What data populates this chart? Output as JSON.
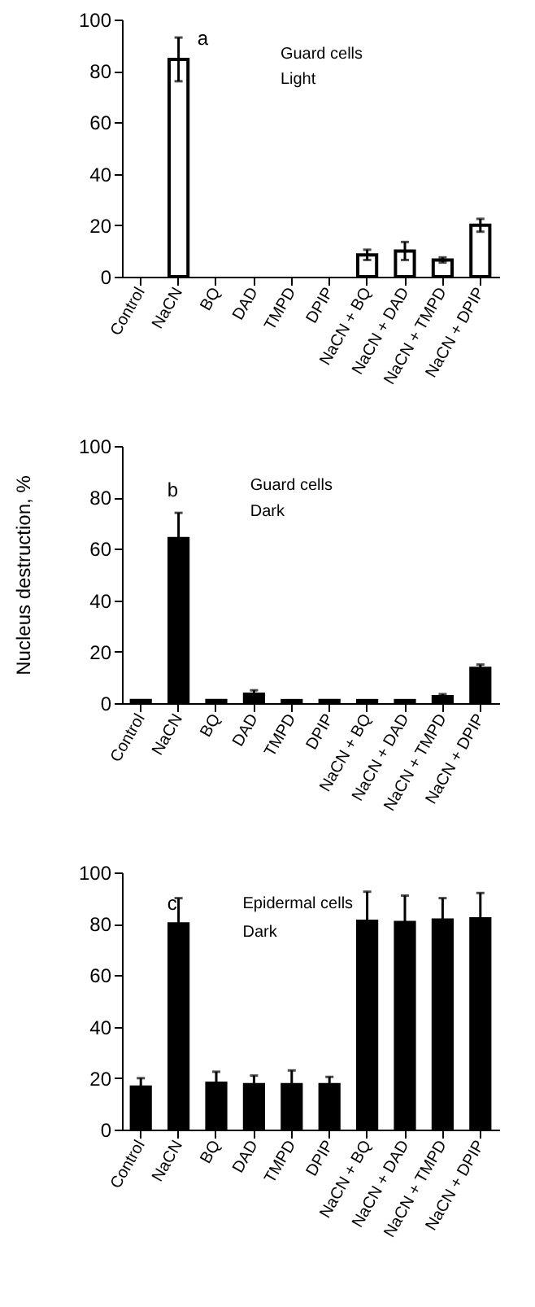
{
  "chart_data": [
    {
      "type": "bar",
      "annotations": [
        "a",
        "Guard cells",
        "Light"
      ],
      "categories": [
        "Control",
        "NaCN",
        "BQ",
        "DAD",
        "TMPD",
        "DPIP",
        "NaCN + BQ",
        "NaCN + DAD",
        "NaCN + TMPD",
        "NaCN + DPIP"
      ],
      "series": [
        {
          "color": "#ffffff",
          "values": [
            0,
            84.5,
            0,
            0,
            0,
            0,
            8.5,
            10,
            6.5,
            20
          ],
          "errors": [
            null,
            8.5,
            null,
            null,
            null,
            null,
            2,
            3.5,
            1,
            2.5
          ]
        }
      ],
      "ylim": [
        0,
        100
      ],
      "yticks": [
        0,
        20,
        40,
        60,
        80,
        100
      ],
      "grid": false,
      "legend": false
    },
    {
      "type": "bar",
      "ylabel": "Nucleus destruction, %",
      "annotations": [
        "b",
        "Guard cells",
        "Dark"
      ],
      "categories": [
        "Control",
        "NaCN",
        "BQ",
        "DAD",
        "TMPD",
        "DPIP",
        "NaCN + BQ",
        "NaCN + DAD",
        "NaCN + TMPD",
        "NaCN + DPIP"
      ],
      "series": [
        {
          "color": "#000000",
          "values": [
            1,
            64,
            1,
            3.5,
            1,
            1,
            1,
            1,
            2.5,
            13.5
          ],
          "errors": [
            null,
            10,
            null,
            1.5,
            null,
            null,
            null,
            null,
            1,
            1.5
          ]
        }
      ],
      "ylim": [
        0,
        100
      ],
      "yticks": [
        0,
        20,
        40,
        60,
        80,
        100
      ],
      "grid": false,
      "legend": false
    },
    {
      "type": "bar",
      "annotations": [
        "c",
        "Epidermal cells",
        "Dark"
      ],
      "categories": [
        "Control",
        "NaCN",
        "BQ",
        "DAD",
        "TMPD",
        "DPIP",
        "NaCN + BQ",
        "NaCN + DAD",
        "NaCN + TMPD",
        "NaCN + DPIP"
      ],
      "series": [
        {
          "color": "#000000",
          "values": [
            16.5,
            80,
            18,
            17.5,
            17.5,
            17.5,
            81,
            80.5,
            81.5,
            82
          ],
          "errors": [
            3.5,
            10,
            4.5,
            3.5,
            5.5,
            3,
            11.5,
            10.5,
            8.5,
            10
          ]
        }
      ],
      "ylim": [
        0,
        100
      ],
      "yticks": [
        0,
        20,
        40,
        60,
        80,
        100
      ],
      "grid": false,
      "legend": false
    }
  ]
}
